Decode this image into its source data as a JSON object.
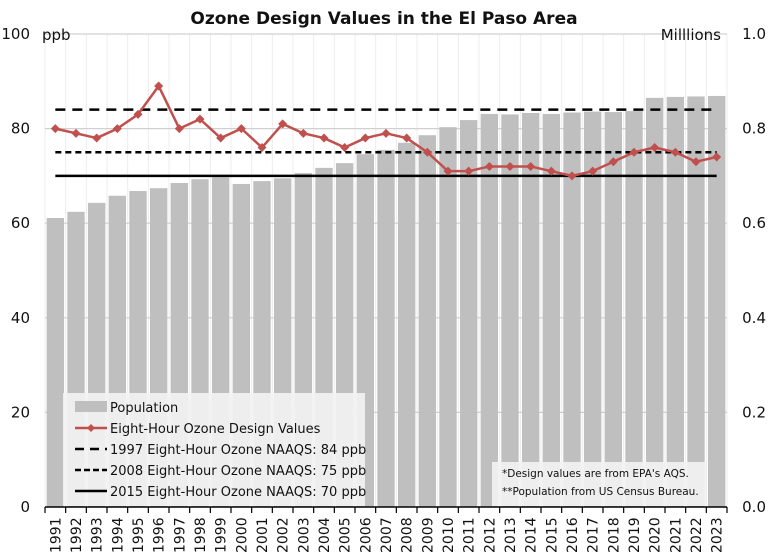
{
  "chart_data": {
    "type": "bar+line",
    "title": "Ozone Design Values in the El Paso Area",
    "left_axis": {
      "unit_label": "ppb",
      "range": [
        0,
        100
      ],
      "ticks": [
        0,
        20,
        40,
        60,
        80,
        100
      ],
      "tick_labels": [
        "0",
        "20",
        "40",
        "60",
        "80",
        "100"
      ]
    },
    "right_axis": {
      "unit_label": "Milllions",
      "range": [
        0.0,
        1.0
      ],
      "ticks": [
        0.0,
        0.2,
        0.4,
        0.6,
        0.8,
        1.0
      ],
      "tick_labels": [
        "0.0",
        "0.2",
        "0.4",
        "0.6",
        "0.8",
        "1.0"
      ]
    },
    "grid": true,
    "categories": [
      "1991",
      "1992",
      "1993",
      "1994",
      "1995",
      "1996",
      "1997",
      "1998",
      "1999",
      "2000",
      "2001",
      "2002",
      "2003",
      "2004",
      "2005",
      "2006",
      "2007",
      "2008",
      "2009",
      "2010",
      "2011",
      "2012",
      "2013",
      "2014",
      "2015",
      "2016",
      "2017",
      "2018",
      "2019",
      "2020",
      "2021",
      "2022",
      "2023"
    ],
    "series": [
      {
        "name": "Population",
        "kind": "bar",
        "axis": "right",
        "unit": "millions",
        "color": "#bfbfbf",
        "values": [
          0.611,
          0.624,
          0.643,
          0.658,
          0.668,
          0.674,
          0.685,
          0.693,
          0.697,
          0.683,
          0.689,
          0.695,
          0.706,
          0.717,
          0.727,
          0.746,
          0.755,
          0.77,
          0.786,
          0.803,
          0.818,
          0.831,
          0.83,
          0.833,
          0.831,
          0.834,
          0.836,
          0.835,
          0.837,
          0.865,
          0.867,
          0.868,
          0.869
        ]
      },
      {
        "name": "Eight-Hour Ozone Design Values",
        "kind": "line",
        "marker": "diamond",
        "axis": "left",
        "unit": "ppb",
        "color": "#c0504d",
        "values": [
          80,
          79,
          78,
          80,
          83,
          89,
          80,
          82,
          78,
          80,
          76,
          81,
          79,
          78,
          76,
          78,
          79,
          78,
          75,
          71,
          71,
          72,
          72,
          72,
          71,
          70,
          71,
          73,
          75,
          76,
          75,
          73,
          74
        ]
      },
      {
        "name": "1997 Eight-Hour Ozone NAAQS: 84 ppb",
        "kind": "hline",
        "axis": "left",
        "value": 84,
        "style": "long-dash",
        "color": "#000000"
      },
      {
        "name": "2008 Eight-Hour Ozone NAAQS: 75 ppb",
        "kind": "hline",
        "axis": "left",
        "value": 75,
        "style": "short-dash",
        "color": "#000000"
      },
      {
        "name": "2015 Eight-Hour Ozone NAAQS: 70 ppb",
        "kind": "hline",
        "axis": "left",
        "value": 70,
        "style": "solid",
        "color": "#000000"
      }
    ],
    "legend": {
      "placement": "bottom-left",
      "entries": [
        "Population",
        "Eight-Hour Ozone Design Values",
        "1997 Eight-Hour Ozone NAAQS: 84 ppb",
        "2008 Eight-Hour Ozone NAAQS: 75 ppb",
        "2015 Eight-Hour Ozone NAAQS: 70 ppb"
      ]
    },
    "notes": {
      "placement": "bottom-right",
      "lines": [
        "*Design values are from EPA's AQS.",
        "**Population from US Census Bureau."
      ]
    }
  }
}
